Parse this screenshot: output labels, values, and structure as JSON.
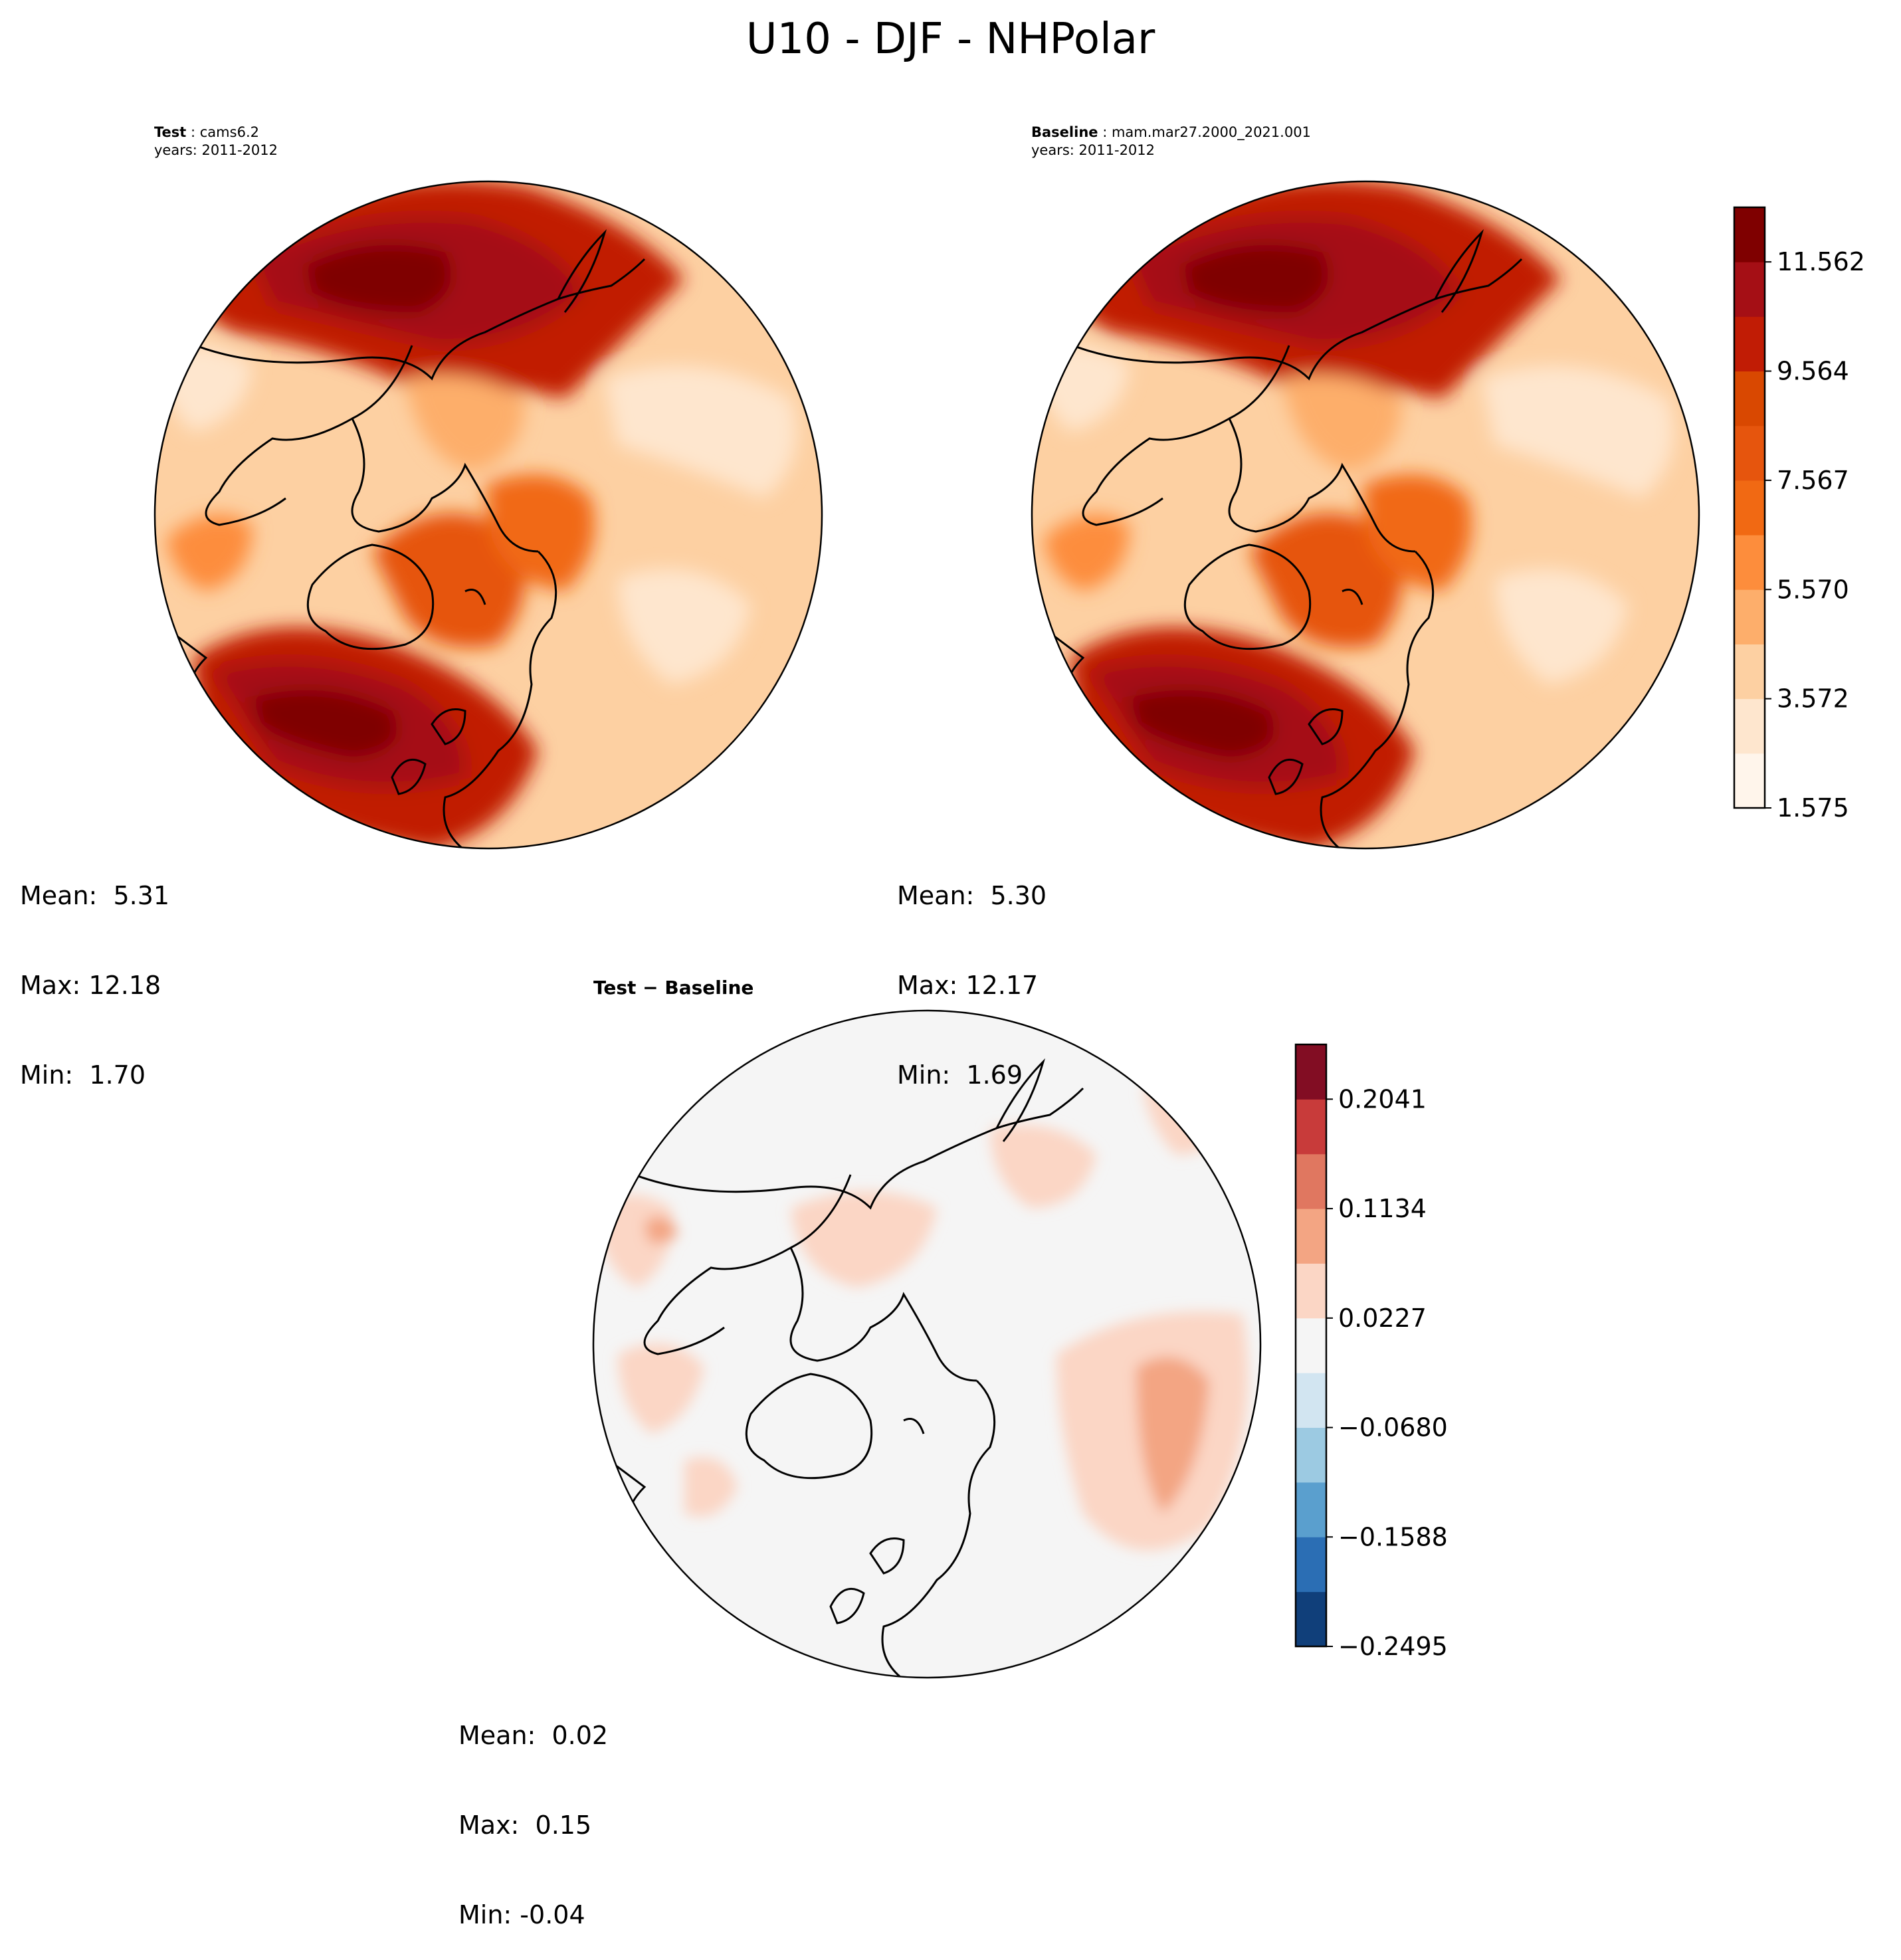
{
  "figure_title": "U10 - DJF - NHPolar",
  "panels": {
    "test": {
      "label": "Test",
      "case": "cams6.2",
      "years": "years: 2011-2012",
      "stats": {
        "mean": "Mean:  5.31",
        "max": "Max: 12.18",
        "min": "Min:  1.70"
      }
    },
    "baseline": {
      "label": "Baseline",
      "case": "mam.mar27.2000_2021.001",
      "years": "years: 2011-2012",
      "stats": {
        "mean": "Mean:  5.30",
        "max": "Max: 12.17",
        "min": "Min:  1.69"
      }
    },
    "diff": {
      "title": "Test − Baseline",
      "stats": {
        "mean": "Mean:  0.02",
        "max": "Max:  0.15",
        "min": "Min: -0.04"
      }
    }
  },
  "colorbars": {
    "main": {
      "colors": [
        "#fff5eb",
        "#fee6ce",
        "#fdd0a2",
        "#fdae6b",
        "#fd8d3c",
        "#f16913",
        "#e6550d",
        "#d94801",
        "#c11c05",
        "#a50f15",
        "#7f0000"
      ],
      "tick_labels": [
        "11.562",
        "9.564",
        "7.567",
        "5.570",
        "3.572",
        "1.575"
      ]
    },
    "diff": {
      "colors": [
        "#103f7a",
        "#2b6eb4",
        "#5a9fce",
        "#9ccae2",
        "#d2e5f1",
        "#f5f5f5",
        "#fbd6c5",
        "#f3a583",
        "#e07760",
        "#c83b3a",
        "#820d23"
      ],
      "tick_labels": [
        "0.2041",
        "0.1134",
        "0.0227",
        "−0.0680",
        "−0.1588",
        "−0.2495"
      ]
    }
  }
}
